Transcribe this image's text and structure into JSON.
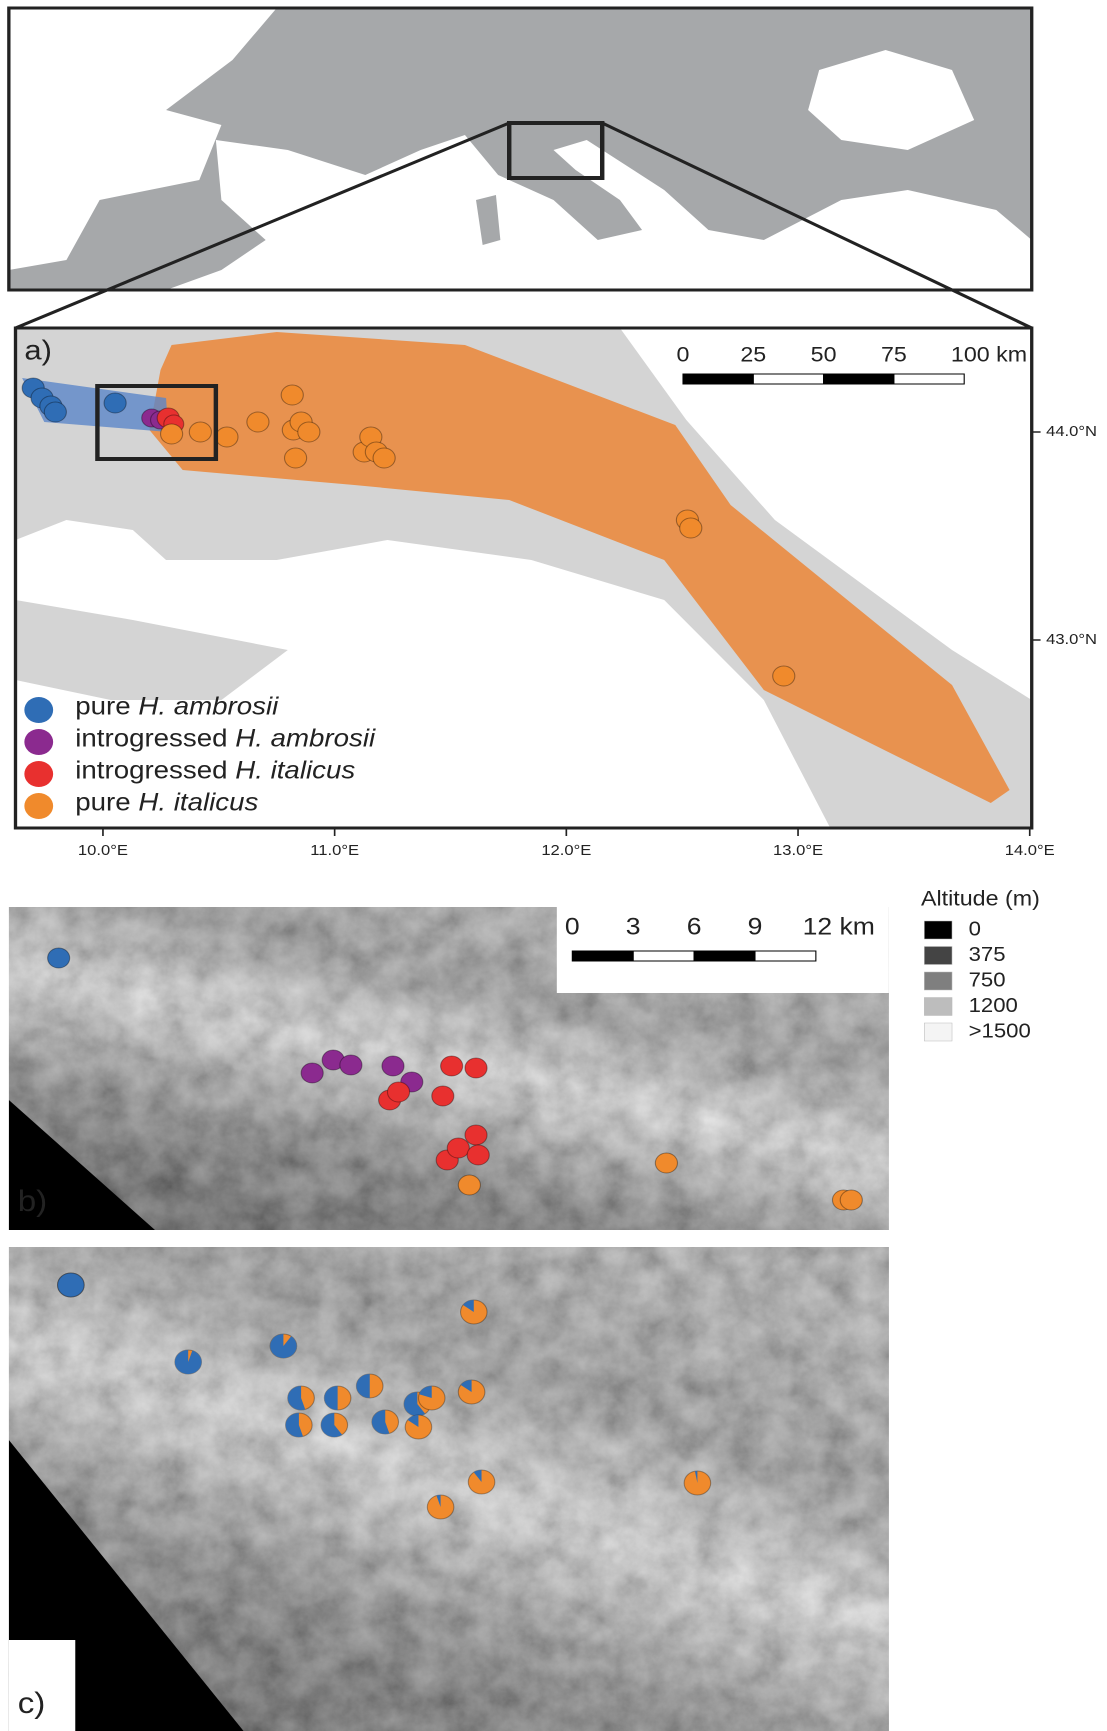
{
  "panel_a": {
    "label": "a)",
    "scale_bar": [
      "0",
      "25",
      "50",
      "75",
      "100 km"
    ],
    "longitude_labels": [
      "10.0°E",
      "11.0°E",
      "12.0°E",
      "13.0°E",
      "14.0°E"
    ],
    "latitude_labels": [
      "44.0°N",
      "43.0°N"
    ],
    "legend": [
      {
        "prefix": "pure",
        "species": "H. ambrosii",
        "color": "#2f6db5"
      },
      {
        "prefix": "introgressed",
        "species": "H. ambrosii",
        "color": "#8b2a8f"
      },
      {
        "prefix": "introgressed",
        "species": "H. italicus",
        "color": "#e8302f"
      },
      {
        "prefix": "pure",
        "species": "H. italicus",
        "color": "#f08a2c"
      }
    ]
  },
  "panel_b": {
    "label": "b)",
    "scale_bar": [
      "0",
      "3",
      "6",
      "9",
      "12 km"
    ]
  },
  "panel_c": {
    "label": "c)"
  },
  "altitude_legend": {
    "title": "Altitude (m)",
    "entries": [
      "0",
      "375",
      "750",
      "1200",
      ">1500"
    ]
  }
}
